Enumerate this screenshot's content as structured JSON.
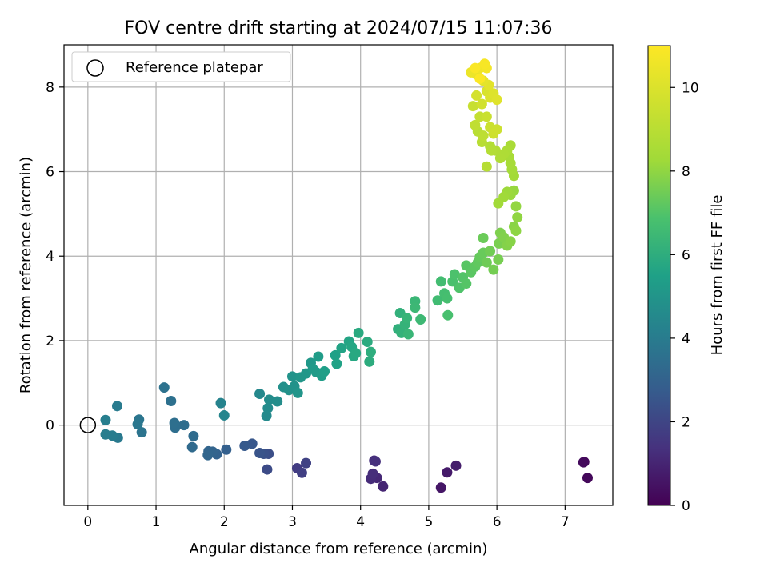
{
  "chart_data": {
    "type": "scatter",
    "title": "FOV centre drift starting at 2024/07/15 11:07:36",
    "xlabel": "Angular distance from reference (arcmin)",
    "ylabel": "Rotation from reference (arcmin)",
    "xlim": [
      -0.35,
      7.7
    ],
    "ylim": [
      -1.9,
      9.0
    ],
    "xticks": [
      0,
      1,
      2,
      3,
      4,
      5,
      6,
      7
    ],
    "yticks": [
      0,
      2,
      4,
      6,
      8
    ],
    "grid": true,
    "legend": {
      "placement": "top-left",
      "entries": [
        "Reference platepar"
      ]
    },
    "reference_point": {
      "x": 0,
      "y": 0
    },
    "colorbar": {
      "label": "Hours from first FF file",
      "colormap": "viridis",
      "range": [
        0,
        11
      ],
      "ticks": [
        0,
        2,
        4,
        6,
        8,
        10
      ]
    },
    "series": [
      {
        "values_xyc": [
          [
            7.28,
            -0.87,
            0.15
          ],
          [
            7.33,
            -1.25,
            0.2
          ],
          [
            7.27,
            -0.88,
            0.25
          ],
          [
            5.18,
            -1.48,
            0.6
          ],
          [
            5.27,
            -1.12,
            0.7
          ],
          [
            5.4,
            -0.96,
            0.8
          ],
          [
            4.33,
            -1.45,
            1.0
          ],
          [
            4.24,
            -1.25,
            1.1
          ],
          [
            4.15,
            -1.27,
            1.2
          ],
          [
            4.18,
            -1.15,
            1.25
          ],
          [
            4.2,
            -0.84,
            1.3
          ],
          [
            4.22,
            -0.86,
            1.35
          ],
          [
            3.07,
            -1.02,
            1.7
          ],
          [
            3.14,
            -1.13,
            1.8
          ],
          [
            3.2,
            -0.9,
            1.9
          ],
          [
            2.63,
            -1.05,
            2.2
          ],
          [
            2.65,
            -0.68,
            2.3
          ],
          [
            2.58,
            -0.68,
            2.4
          ],
          [
            2.52,
            -0.66,
            2.5
          ],
          [
            2.41,
            -0.44,
            2.6
          ],
          [
            2.3,
            -0.49,
            2.7
          ],
          [
            2.03,
            -0.58,
            2.9
          ],
          [
            1.89,
            -0.69,
            3.0
          ],
          [
            1.83,
            -0.63,
            3.05
          ],
          [
            1.77,
            -0.62,
            3.1
          ],
          [
            1.76,
            -0.71,
            3.15
          ],
          [
            1.53,
            -0.52,
            3.3
          ],
          [
            1.55,
            -0.26,
            3.35
          ],
          [
            1.41,
            0.0,
            3.4
          ],
          [
            1.28,
            -0.06,
            3.45
          ],
          [
            1.27,
            0.05,
            3.5
          ],
          [
            1.22,
            0.57,
            3.55
          ],
          [
            1.12,
            0.89,
            3.6
          ],
          [
            0.79,
            -0.17,
            3.7
          ],
          [
            0.75,
            0.13,
            3.75
          ],
          [
            0.73,
            0.02,
            3.8
          ],
          [
            0.44,
            -0.3,
            3.9
          ],
          [
            0.43,
            0.45,
            3.95
          ],
          [
            0.36,
            -0.25,
            4.0
          ],
          [
            0.26,
            -0.22,
            4.05
          ],
          [
            0.26,
            0.12,
            4.1
          ],
          [
            1.95,
            0.52,
            4.3
          ],
          [
            2.0,
            0.23,
            4.35
          ],
          [
            2.52,
            0.74,
            4.5
          ],
          [
            2.62,
            0.22,
            4.55
          ],
          [
            2.64,
            0.4,
            4.6
          ],
          [
            2.66,
            0.6,
            4.65
          ],
          [
            2.78,
            0.56,
            4.7
          ],
          [
            2.87,
            0.9,
            4.8
          ],
          [
            2.95,
            0.83,
            4.85
          ],
          [
            3.03,
            0.92,
            4.9
          ],
          [
            3.0,
            1.15,
            4.95
          ],
          [
            3.08,
            0.76,
            5.0
          ],
          [
            3.12,
            1.13,
            5.05
          ],
          [
            3.2,
            1.22,
            5.1
          ],
          [
            3.27,
            1.47,
            5.15
          ],
          [
            3.3,
            1.33,
            5.2
          ],
          [
            3.35,
            1.25,
            5.25
          ],
          [
            3.38,
            1.62,
            5.3
          ],
          [
            3.43,
            1.17,
            5.35
          ],
          [
            3.47,
            1.27,
            5.4
          ],
          [
            3.63,
            1.65,
            5.5
          ],
          [
            3.65,
            1.45,
            5.55
          ],
          [
            3.72,
            1.82,
            5.6
          ],
          [
            3.83,
            1.98,
            5.65
          ],
          [
            3.87,
            1.85,
            5.7
          ],
          [
            3.9,
            1.63,
            5.75
          ],
          [
            3.93,
            1.7,
            5.8
          ],
          [
            3.97,
            2.18,
            5.85
          ],
          [
            4.1,
            1.97,
            5.9
          ],
          [
            4.13,
            1.5,
            5.95
          ],
          [
            4.15,
            1.73,
            6.0
          ],
          [
            4.55,
            2.27,
            6.1
          ],
          [
            4.58,
            2.65,
            6.15
          ],
          [
            4.6,
            2.18,
            6.2
          ],
          [
            4.65,
            2.38,
            6.25
          ],
          [
            4.68,
            2.53,
            6.3
          ],
          [
            4.7,
            2.15,
            6.35
          ],
          [
            4.8,
            2.93,
            6.4
          ],
          [
            4.8,
            2.78,
            6.45
          ],
          [
            4.88,
            2.5,
            6.5
          ],
          [
            5.13,
            2.95,
            6.6
          ],
          [
            5.18,
            3.4,
            6.65
          ],
          [
            5.23,
            3.12,
            6.7
          ],
          [
            5.27,
            3.0,
            6.75
          ],
          [
            5.28,
            2.6,
            6.8
          ],
          [
            5.35,
            3.4,
            6.85
          ],
          [
            5.38,
            3.57,
            6.9
          ],
          [
            5.45,
            3.25,
            6.95
          ],
          [
            5.5,
            3.5,
            7.0
          ],
          [
            5.55,
            3.35,
            7.05
          ],
          [
            5.55,
            3.78,
            7.1
          ],
          [
            5.62,
            3.62,
            7.15
          ],
          [
            5.68,
            3.75,
            7.2
          ],
          [
            5.72,
            3.85,
            7.25
          ],
          [
            5.75,
            3.98,
            7.3
          ],
          [
            5.8,
            4.08,
            7.35
          ],
          [
            5.8,
            4.43,
            7.4
          ],
          [
            5.85,
            3.85,
            7.45
          ],
          [
            5.9,
            4.12,
            7.5
          ],
          [
            5.95,
            3.68,
            7.55
          ],
          [
            6.02,
            3.92,
            7.6
          ],
          [
            6.03,
            4.3,
            7.65
          ],
          [
            6.05,
            4.55,
            7.7
          ],
          [
            6.1,
            4.45,
            7.75
          ],
          [
            6.15,
            4.25,
            7.8
          ],
          [
            6.2,
            4.35,
            7.85
          ],
          [
            6.25,
            4.7,
            7.9
          ],
          [
            6.28,
            4.6,
            7.95
          ],
          [
            6.3,
            4.92,
            8.0
          ],
          [
            6.28,
            5.18,
            8.05
          ],
          [
            6.25,
            5.55,
            8.1
          ],
          [
            6.2,
            5.45,
            8.15
          ],
          [
            6.15,
            5.52,
            8.2
          ],
          [
            6.1,
            5.4,
            8.25
          ],
          [
            6.02,
            5.25,
            8.3
          ],
          [
            6.25,
            5.9,
            8.35
          ],
          [
            6.22,
            6.05,
            8.4
          ],
          [
            6.2,
            6.2,
            8.45
          ],
          [
            6.18,
            6.35,
            8.5
          ],
          [
            6.2,
            6.62,
            8.55
          ],
          [
            6.15,
            6.5,
            8.6
          ],
          [
            6.1,
            6.42,
            8.65
          ],
          [
            6.05,
            6.32,
            8.7
          ],
          [
            5.98,
            6.5,
            8.75
          ],
          [
            5.9,
            6.6,
            8.8
          ],
          [
            5.92,
            6.5,
            8.85
          ],
          [
            5.85,
            6.12,
            8.9
          ],
          [
            5.78,
            6.7,
            8.95
          ],
          [
            5.72,
            6.95,
            9.0
          ],
          [
            5.8,
            6.85,
            9.1
          ],
          [
            5.68,
            7.1,
            9.2
          ],
          [
            5.75,
            7.3,
            9.3
          ],
          [
            5.65,
            7.55,
            9.4
          ],
          [
            5.85,
            7.3,
            9.45
          ],
          [
            5.9,
            7.05,
            9.5
          ],
          [
            6.0,
            7.0,
            9.55
          ],
          [
            5.95,
            6.9,
            9.6
          ],
          [
            5.78,
            7.6,
            9.7
          ],
          [
            5.7,
            7.8,
            9.8
          ],
          [
            5.85,
            7.9,
            9.9
          ],
          [
            5.9,
            7.75,
            10.0
          ],
          [
            5.95,
            7.85,
            10.05
          ],
          [
            6.0,
            7.7,
            10.1
          ],
          [
            5.88,
            8.05,
            10.2
          ],
          [
            5.8,
            8.15,
            10.3
          ],
          [
            5.7,
            8.3,
            10.4
          ],
          [
            5.62,
            8.35,
            10.5
          ],
          [
            5.75,
            8.45,
            10.6
          ],
          [
            5.85,
            8.45,
            10.7
          ],
          [
            5.82,
            8.55,
            10.8
          ],
          [
            5.68,
            8.45,
            10.9
          ],
          [
            5.75,
            8.2,
            10.95
          ]
        ]
      }
    ]
  }
}
